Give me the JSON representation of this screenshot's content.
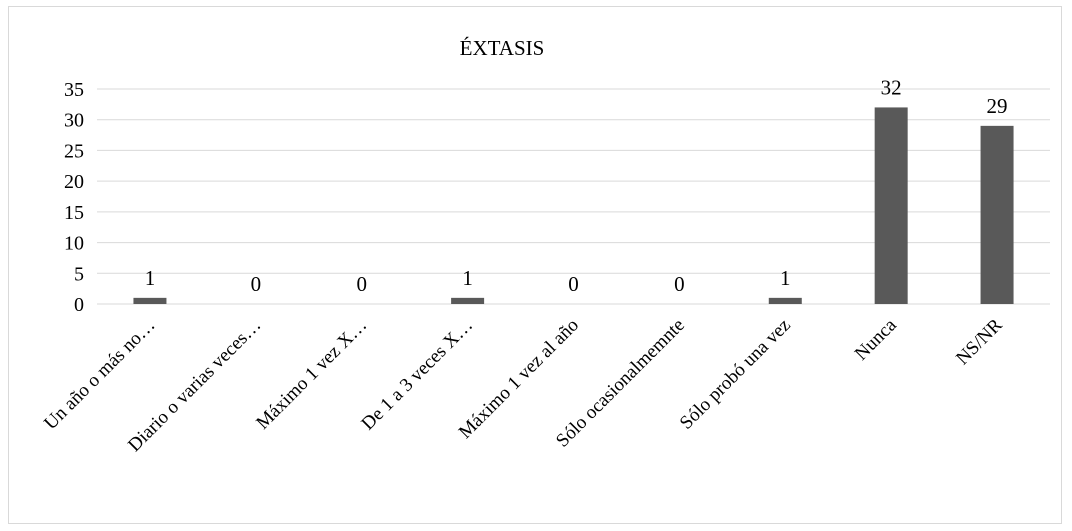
{
  "chart_data": {
    "type": "bar",
    "title": "ÉXTASIS",
    "categories": [
      "Un año o más no…",
      "Diario o varias veces…",
      "Máximo 1 vez X…",
      "De 1 a 3 veces X…",
      "Máximo 1 vez al año",
      "Sólo ocasionalmemnte",
      "Sólo probó una vez",
      "Nunca",
      "NS/NR"
    ],
    "values": [
      1,
      0,
      0,
      1,
      0,
      0,
      1,
      32,
      29
    ],
    "xlabel": "",
    "ylabel": "",
    "ylim": [
      0,
      35
    ],
    "yticks": [
      0,
      5,
      10,
      15,
      20,
      25,
      30,
      35
    ],
    "grid": true,
    "legend": "none",
    "data_labels": true,
    "colors": {
      "bar": "#595959",
      "grid": "#d9d9d9",
      "axis": "#d9d9d9"
    }
  }
}
